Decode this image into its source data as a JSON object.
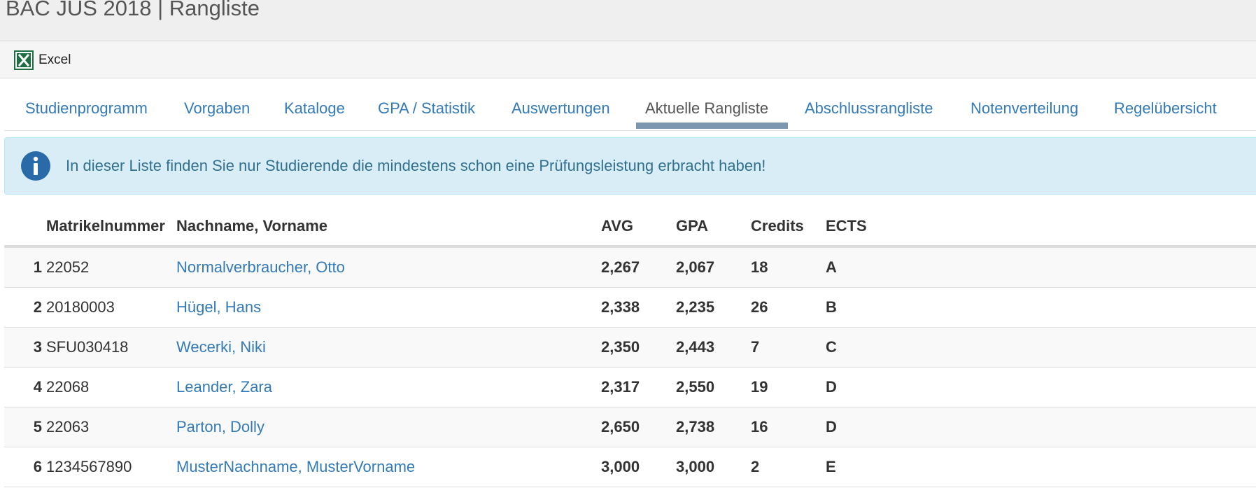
{
  "page": {
    "title": "BAC JUS 2018 | Rangliste"
  },
  "toolbar": {
    "excel_label": "Excel"
  },
  "tabs": [
    {
      "label": "Studienprogramm",
      "active": false
    },
    {
      "label": "Vorgaben",
      "active": false
    },
    {
      "label": "Kataloge",
      "active": false
    },
    {
      "label": "GPA / Statistik",
      "active": false
    },
    {
      "label": "Auswertungen",
      "active": false
    },
    {
      "label": "Aktuelle Rangliste",
      "active": true
    },
    {
      "label": "Abschlussrangliste",
      "active": false
    },
    {
      "label": "Notenverteilung",
      "active": false
    },
    {
      "label": "Regelübersicht",
      "active": false
    }
  ],
  "info": {
    "message": "In dieser Liste finden Sie nur Studierende die mindestens schon eine Prüfungsleistung erbracht haben!"
  },
  "table": {
    "headers": {
      "rank": "",
      "matrikelnummer": "Matrikelnummer",
      "name": "Nachname, Vorname",
      "avg": "AVG",
      "gpa": "GPA",
      "credits": "Credits",
      "ects": "ECTS"
    },
    "rows": [
      {
        "rank": "1",
        "matrikelnummer": "22052",
        "name": "Normalverbraucher, Otto",
        "avg": "2,267",
        "gpa": "2,067",
        "credits": "18",
        "ects": "A"
      },
      {
        "rank": "2",
        "matrikelnummer": "20180003",
        "name": "Hügel, Hans",
        "avg": "2,338",
        "gpa": "2,235",
        "credits": "26",
        "ects": "B"
      },
      {
        "rank": "3",
        "matrikelnummer": "SFU030418",
        "name": "Wecerki, Niki",
        "avg": "2,350",
        "gpa": "2,443",
        "credits": "7",
        "ects": "C"
      },
      {
        "rank": "4",
        "matrikelnummer": "22068",
        "name": "Leander, Zara",
        "avg": "2,317",
        "gpa": "2,550",
        "credits": "19",
        "ects": "D"
      },
      {
        "rank": "5",
        "matrikelnummer": "22063",
        "name": "Parton, Dolly",
        "avg": "2,650",
        "gpa": "2,738",
        "credits": "16",
        "ects": "D"
      },
      {
        "rank": "6",
        "matrikelnummer": "1234567890",
        "name": "MusterNachname, MusterVorname",
        "avg": "3,000",
        "gpa": "3,000",
        "credits": "2",
        "ects": "E"
      }
    ]
  },
  "colors": {
    "link": "#337ab7",
    "info_bg": "#d9edf7",
    "info_text": "#31708f",
    "active_tab_underline": "#7d97b0",
    "excel_green": "#1d6f42"
  },
  "icons": {
    "excel": "excel-icon",
    "info": "info-icon"
  }
}
